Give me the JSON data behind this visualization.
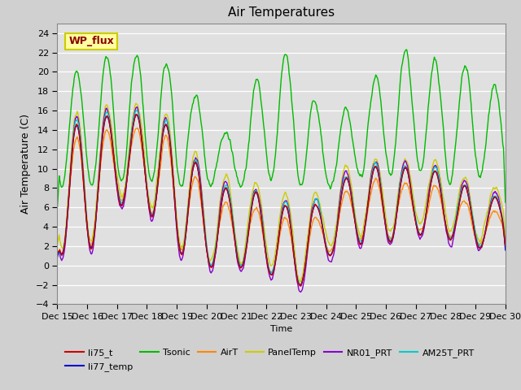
{
  "title": "Air Temperatures",
  "xlabel": "Time",
  "ylabel": "Air Temperature (C)",
  "ylim": [
    -4,
    25
  ],
  "yticks": [
    -4,
    -2,
    0,
    2,
    4,
    6,
    8,
    10,
    12,
    14,
    16,
    18,
    20,
    22,
    24
  ],
  "xlim": [
    0,
    15
  ],
  "x_tick_labels": [
    "Dec 15",
    "Dec 16",
    "Dec 17",
    "Dec 18",
    "Dec 19",
    "Dec 20",
    "Dec 21",
    "Dec 22",
    "Dec 23",
    "Dec 24",
    "Dec 25",
    "Dec 26",
    "Dec 27",
    "Dec 28",
    "Dec 29",
    "Dec 30"
  ],
  "fig_bg": "#d0d0d0",
  "plot_bg": "#e0e0e0",
  "wp_flux_box_color": "#ffffa0",
  "wp_flux_text_color": "#8b0000",
  "wp_flux_edge_color": "#cccc00",
  "line_colors": {
    "li75_t": "#cc0000",
    "li77_temp": "#0000cc",
    "Tsonic": "#00bb00",
    "AirT": "#ff8800",
    "PanelTemp": "#cccc00",
    "NR01_PRT": "#8800cc",
    "AM25T_PRT": "#00cccc"
  },
  "n_points": 720
}
